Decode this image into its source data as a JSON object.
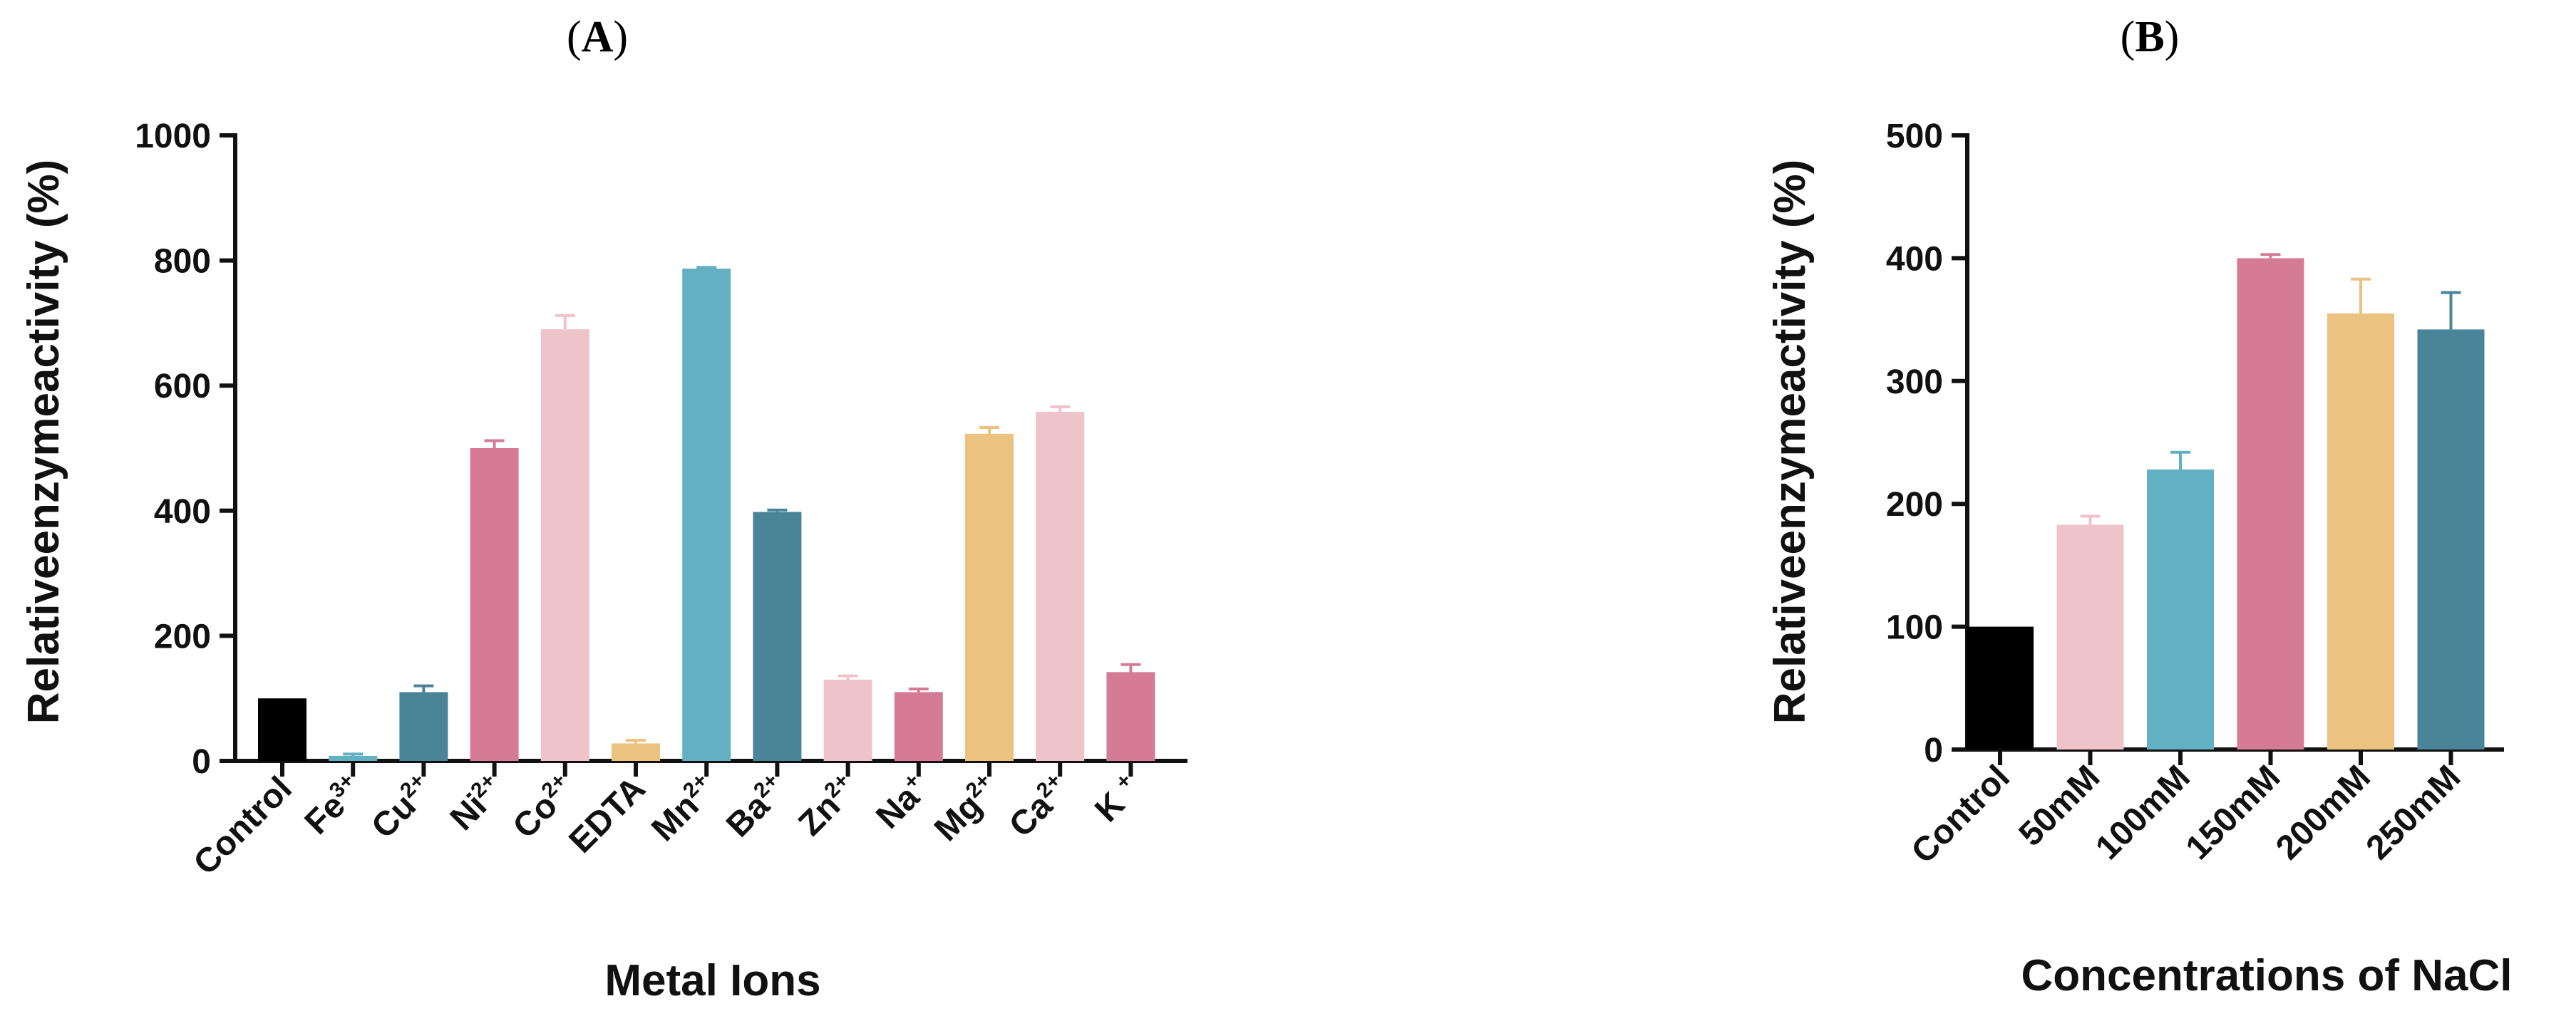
{
  "chart_data": [
    {
      "type": "bar",
      "panel_label": "A",
      "xlabel": "Metal Ions",
      "ylabel": "Relativeenzymeactivity (%)",
      "ylim": [
        0,
        1000
      ],
      "yticks": [
        "0",
        "200",
        "400",
        "600",
        "800",
        "1000"
      ],
      "grid": false,
      "categories": [
        {
          "base": "Control",
          "sup": ""
        },
        {
          "base": "Fe",
          "sup": "3+"
        },
        {
          "base": "Cu",
          "sup": "2+"
        },
        {
          "base": "Ni",
          "sup": "2+"
        },
        {
          "base": "Co",
          "sup": "2+"
        },
        {
          "base": "EDTA",
          "sup": ""
        },
        {
          "base": "Mn",
          "sup": "2+"
        },
        {
          "base": "Ba",
          "sup": "2+"
        },
        {
          "base": "Zn",
          "sup": "2+"
        },
        {
          "base": "Na",
          "sup": "+"
        },
        {
          "base": "Mg",
          "sup": "2+"
        },
        {
          "base": "Ca",
          "sup": "2+"
        },
        {
          "base": "K ",
          "sup": "+"
        }
      ],
      "values": [
        100,
        8,
        110,
        500,
        690,
        28,
        787,
        398,
        130,
        110,
        523,
        558,
        142
      ],
      "errors": [
        0,
        3,
        10,
        12,
        22,
        5,
        2,
        3,
        6,
        5,
        10,
        8,
        12
      ],
      "colors": [
        "#000000",
        "#62b0c2",
        "#4a8498",
        "#d57b95",
        "#efc3ca",
        "#ebc27f",
        "#62b0c2",
        "#4a8498",
        "#efc3ca",
        "#d57b95",
        "#ebc27f",
        "#efc3ca",
        "#d57b95"
      ]
    },
    {
      "type": "bar",
      "panel_label": "B",
      "xlabel": "Concentrations of NaCl",
      "ylabel": "Relativeenzymeactivity (%)",
      "ylim": [
        0,
        500
      ],
      "yticks": [
        "0",
        "100",
        "200",
        "300",
        "400",
        "500"
      ],
      "grid": false,
      "categories": [
        {
          "base": "Control",
          "sup": ""
        },
        {
          "base": "50mM",
          "sup": ""
        },
        {
          "base": "100mM",
          "sup": ""
        },
        {
          "base": "150mM",
          "sup": ""
        },
        {
          "base": "200mM",
          "sup": ""
        },
        {
          "base": "250mM",
          "sup": ""
        }
      ],
      "values": [
        100,
        183,
        228,
        400,
        355,
        342
      ],
      "errors": [
        0,
        7,
        14,
        3,
        28,
        30
      ],
      "colors": [
        "#000000",
        "#efc3ca",
        "#62b0c2",
        "#d57b95",
        "#ebc27f",
        "#4a8498"
      ]
    }
  ]
}
